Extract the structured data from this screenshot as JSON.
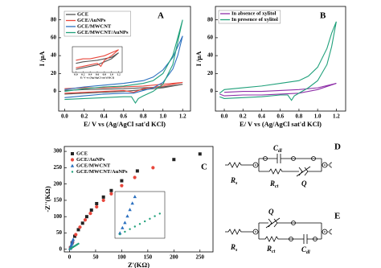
{
  "chart_data": [
    {
      "type": "line",
      "label": "A",
      "xlabel": "E/ V vs (Ag/AgCl sat'd KCl)",
      "ylabel": "I /μA",
      "xlim": [
        -0.06,
        1.28
      ],
      "ylim": [
        -22,
        95
      ],
      "xticks": [
        {
          "value": 0,
          "label": "0.0"
        },
        0.2,
        0.4,
        0.6,
        0.8,
        {
          "value": 1,
          "label": "1.0"
        },
        1.2
      ],
      "yticks": [
        0,
        20,
        40,
        60,
        80
      ],
      "legend": "upper left",
      "series": [
        {
          "name": "GCE",
          "color": "#555555",
          "x": [
            0,
            0.2,
            0.4,
            0.6,
            0.8,
            1.0,
            1.2,
            1.0,
            0.8,
            0.6,
            0.4,
            0.2,
            0
          ],
          "values": [
            1,
            2,
            2.5,
            3,
            4,
            5,
            8,
            4,
            2,
            0,
            -1,
            -2,
            -3
          ]
        },
        {
          "name": "GCE/AuNPs",
          "color": "#e8473c",
          "x": [
            0,
            0.2,
            0.4,
            0.6,
            0.8,
            1.0,
            1.2,
            1.0,
            0.8,
            0.7,
            0.6,
            0.4,
            0.2,
            0
          ],
          "values": [
            3,
            4,
            4,
            5,
            6,
            8,
            10,
            6,
            3,
            -1,
            1,
            0,
            -1,
            -2
          ]
        },
        {
          "name": "GCE/MWCNT",
          "color": "#2a6fbf",
          "x": [
            0,
            0.2,
            0.4,
            0.6,
            0.8,
            0.9,
            1.0,
            1.1,
            1.15,
            1.2,
            1.15,
            1.1,
            1.0,
            0.9,
            0.8,
            0.7,
            0.6,
            0.4,
            0.2,
            0
          ],
          "values": [
            2,
            5,
            7,
            9,
            12,
            16,
            24,
            38,
            50,
            62,
            40,
            25,
            10,
            4,
            1,
            -2,
            -2,
            -3,
            -5,
            -7
          ]
        },
        {
          "name": "GCE/MWCNT/AuNPs",
          "color": "#1fa07a",
          "x": [
            0,
            0.2,
            0.4,
            0.6,
            0.8,
            0.9,
            1.0,
            1.1,
            1.15,
            1.2,
            1.15,
            1.1,
            1.0,
            0.9,
            0.8,
            0.75,
            0.72,
            0.68,
            0.6,
            0.4,
            0.2,
            0
          ],
          "values": [
            0,
            3,
            5,
            6,
            9,
            12,
            20,
            40,
            60,
            80,
            55,
            30,
            8,
            0,
            -5,
            -8,
            -13,
            -6,
            -6,
            -7,
            -8,
            -9
          ]
        }
      ],
      "inset": {
        "xlim": [
          -0.1,
          1.3
        ],
        "ylim": [
          -5,
          12
        ],
        "xlabel": "E/ V vs (Ag/AgCl sat'd KCl)",
        "xticks": [
          {
            "value": 0,
            "label": "0.0"
          },
          0.2,
          0.4,
          0.6,
          0.8,
          {
            "value": 1,
            "label": "1.0"
          },
          1.2
        ]
      }
    },
    {
      "type": "line",
      "label": "B",
      "xlabel": "E/ V vs (Ag/AgCl sat'd KCl)",
      "ylabel": "I /μA",
      "xlim": [
        -0.095,
        1.3
      ],
      "ylim": [
        -22,
        95
      ],
      "xticks": [
        {
          "value": 0,
          "label": "0.0"
        },
        0.2,
        0.4,
        0.6,
        0.8,
        {
          "value": 1,
          "label": "1.0"
        },
        1.2
      ],
      "yticks": [
        0,
        20,
        40,
        60,
        80
      ],
      "legend": "upper left",
      "series": [
        {
          "name": "In absence of xylitol",
          "color": "#8e2fa8",
          "x": [
            0,
            0.2,
            0.4,
            0.6,
            0.8,
            1.0,
            1.2,
            1.0,
            0.8,
            0.6,
            0.4,
            0.2,
            0,
            -0.05
          ],
          "values": [
            -1,
            0,
            0,
            1,
            2,
            4,
            9,
            2,
            -2,
            -3,
            -4,
            -4,
            -5,
            -3
          ]
        },
        {
          "name": "In presence of xylitol",
          "color": "#1fa07a",
          "x": [
            -0.05,
            0,
            0.2,
            0.4,
            0.6,
            0.8,
            0.9,
            1.0,
            1.1,
            1.15,
            1.2,
            1.15,
            1.1,
            1.0,
            0.9,
            0.8,
            0.75,
            0.72,
            0.68,
            0.6,
            0.4,
            0.2,
            0,
            -0.05
          ],
          "values": [
            -2,
            2,
            4,
            6,
            9,
            12,
            17,
            27,
            48,
            65,
            78,
            50,
            30,
            12,
            4,
            -2,
            -5,
            -10,
            -4,
            -4,
            -6,
            -7,
            -8,
            -6
          ]
        }
      ]
    },
    {
      "type": "scatter",
      "label": "C",
      "xlabel": "Z'(KΩ)",
      "ylabel": "-Z''(KΩ)",
      "xlim": [
        -10,
        275
      ],
      "ylim": [
        -8,
        315
      ],
      "xticks": [
        0,
        50,
        100,
        150,
        200,
        250
      ],
      "yticks": [
        0,
        50,
        100,
        150,
        200,
        250,
        300
      ],
      "legend": "upper left",
      "series": [
        {
          "name": "GCE",
          "color": "#222222",
          "marker": "square",
          "x": [
            2,
            5,
            10,
            17,
            25,
            33,
            42,
            52,
            65,
            80,
            100,
            130,
            200,
            250
          ],
          "values": [
            5,
            20,
            40,
            60,
            80,
            100,
            120,
            140,
            160,
            180,
            210,
            240,
            275,
            292
          ]
        },
        {
          "name": "GCE/AuNPs",
          "color": "#e8473c",
          "marker": "circle",
          "x": [
            2,
            6,
            12,
            20,
            30,
            40,
            52,
            65,
            80,
            100,
            125,
            160
          ],
          "values": [
            5,
            22,
            45,
            68,
            90,
            110,
            130,
            150,
            170,
            195,
            220,
            250
          ]
        },
        {
          "name": "GCE/MWCNT",
          "color": "#2a6fbf",
          "marker": "triangle",
          "x": [
            1,
            2,
            3,
            4,
            5,
            6,
            7
          ],
          "values": [
            2,
            6,
            10,
            15,
            20,
            25,
            30
          ]
        },
        {
          "name": "GCE/MWCNT/AuNPs",
          "color": "#1fa07a",
          "marker": "dot",
          "x": [
            1,
            3,
            5,
            7,
            9,
            11,
            13,
            15,
            17
          ],
          "values": [
            1,
            3,
            5,
            7,
            9,
            11,
            13,
            15,
            17
          ]
        }
      ],
      "inset": {
        "xlim": [
          -1,
          19
        ],
        "ylim": [
          -2,
          34
        ]
      }
    }
  ],
  "circuits": [
    {
      "label": "D",
      "elements": [
        {
          "main": "R",
          "sub": "s"
        },
        {
          "main": "C",
          "sub": "dl"
        },
        {
          "main": "R",
          "sub": "ct"
        },
        {
          "main": "Q"
        }
      ]
    },
    {
      "label": "E",
      "elements": [
        {
          "main": "R",
          "sub": "s"
        },
        {
          "main": "Q"
        },
        {
          "main": "R",
          "sub": "ct"
        },
        {
          "main": "C",
          "sub": "dl"
        }
      ]
    }
  ]
}
